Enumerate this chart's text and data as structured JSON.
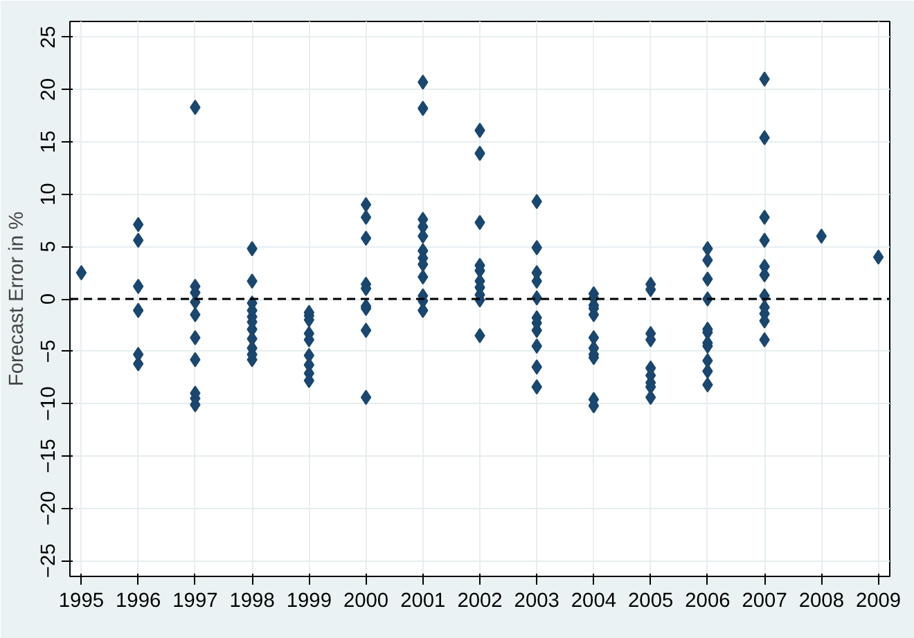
{
  "chart_data": {
    "type": "scatter",
    "ylabel": "Forecast Error in %",
    "x": [
      1995,
      1996,
      1996,
      1996,
      1996,
      1996,
      1996,
      1997,
      1997,
      1997,
      1997,
      1997,
      1997,
      1997,
      1997,
      1997,
      1997,
      1998,
      1998,
      1998,
      1998,
      1998,
      1998,
      1998,
      1998,
      1998,
      1998,
      1998,
      1999,
      1999,
      1999,
      1999,
      1999,
      1999,
      1999,
      1999,
      1999,
      2000,
      2000,
      2000,
      2000,
      2000,
      2000,
      2000,
      2000,
      2000,
      2001,
      2001,
      2001,
      2001,
      2001,
      2001,
      2001,
      2001,
      2001,
      2001,
      2001,
      2001,
      2002,
      2002,
      2002,
      2002,
      2002,
      2002,
      2002,
      2002,
      2002,
      2002,
      2003,
      2003,
      2003,
      2003,
      2003,
      2003,
      2003,
      2003,
      2003,
      2003,
      2003,
      2004,
      2004,
      2004,
      2004,
      2004,
      2004,
      2004,
      2004,
      2004,
      2004,
      2004,
      2005,
      2005,
      2005,
      2005,
      2005,
      2005,
      2005,
      2005,
      2005,
      2006,
      2006,
      2006,
      2006,
      2006,
      2006,
      2006,
      2006,
      2006,
      2006,
      2006,
      2007,
      2007,
      2007,
      2007,
      2007,
      2007,
      2007,
      2007,
      2007,
      2007,
      2007,
      2008,
      2009
    ],
    "series": [
      {
        "color": "#1a476f",
        "values": [
          2.5,
          7.1,
          5.6,
          1.2,
          -1.1,
          -5.3,
          -6.2,
          18.3,
          1.2,
          0.6,
          -0.3,
          -1.5,
          -3.7,
          -5.8,
          -9.0,
          -9.5,
          -10.1,
          4.8,
          1.7,
          -0.4,
          -1.1,
          -1.7,
          -2.2,
          -2.9,
          -3.8,
          -4.7,
          -5.3,
          -5.8,
          -1.3,
          -1.6,
          -2.0,
          -3.3,
          -3.9,
          -5.4,
          -6.3,
          -7.1,
          -7.8,
          9.0,
          7.8,
          5.8,
          1.4,
          1.0,
          -0.7,
          -0.9,
          -3.0,
          -9.4,
          20.7,
          18.2,
          7.6,
          6.9,
          6.0,
          4.6,
          3.9,
          3.3,
          2.1,
          0.3,
          -0.2,
          -1.1,
          16.1,
          13.9,
          7.3,
          3.2,
          2.7,
          1.7,
          1.1,
          0.4,
          -0.1,
          -3.5,
          9.3,
          4.9,
          2.5,
          1.7,
          0.1,
          -1.8,
          -2.3,
          -3.0,
          -4.5,
          -6.5,
          -8.4,
          0.5,
          0.1,
          -0.6,
          -0.9,
          -1.5,
          -3.7,
          -4.7,
          -5.3,
          -5.6,
          -9.6,
          -10.2,
          1.4,
          0.9,
          -3.3,
          -3.9,
          -6.6,
          -7.3,
          -8.0,
          -8.4,
          -9.4,
          4.8,
          3.7,
          1.9,
          0.0,
          -2.9,
          -3.2,
          -4.2,
          -4.5,
          -5.9,
          -6.9,
          -8.2,
          21.0,
          15.4,
          7.8,
          5.6,
          3.1,
          2.3,
          0.3,
          -0.8,
          -1.4,
          -2.1,
          -3.9,
          6.0,
          4.0
        ]
      }
    ],
    "xlim": [
      1994.8,
      2009.2
    ],
    "xticks": [
      1995,
      1996,
      1997,
      1998,
      1999,
      2000,
      2001,
      2002,
      2003,
      2004,
      2005,
      2006,
      2007,
      2008,
      2009
    ],
    "ylim": [
      -26.5,
      26.5
    ],
    "yticks": [
      -25,
      -20,
      -15,
      -10,
      -5,
      0,
      5,
      10,
      15,
      20,
      25
    ],
    "ref_lines": [
      {
        "axis": "y",
        "value": 0,
        "color": "#000000",
        "line_style": "dashed"
      }
    ],
    "grid": true,
    "marker": "diamond"
  }
}
